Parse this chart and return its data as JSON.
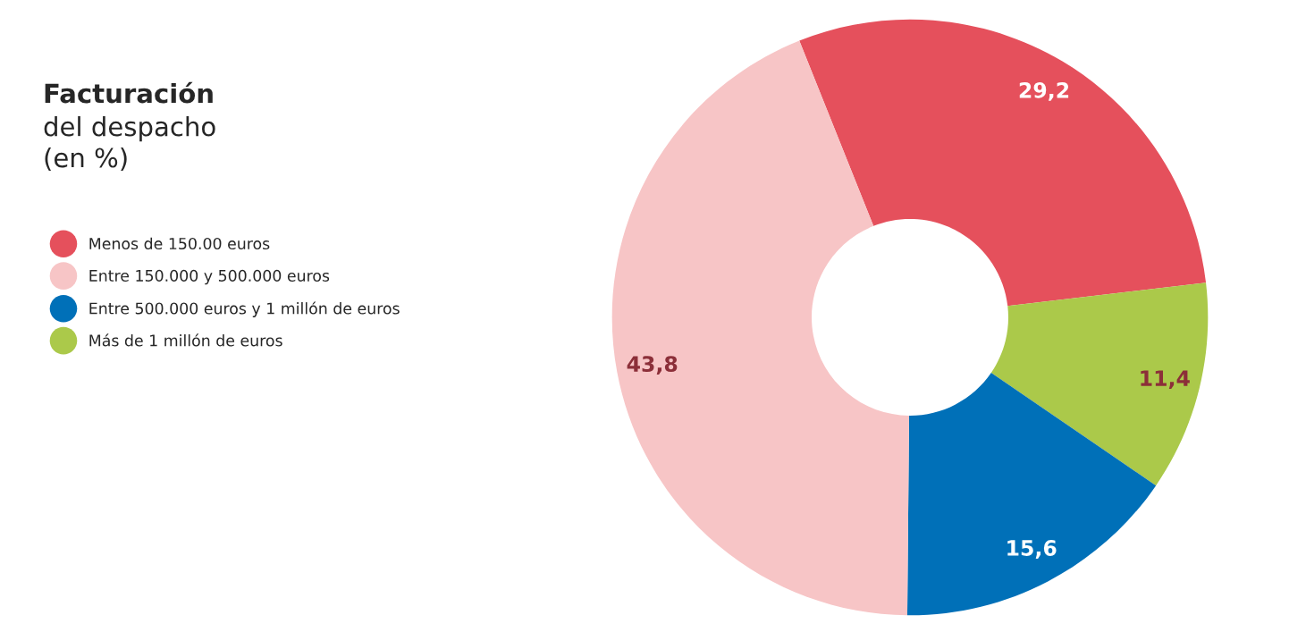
{
  "chart_data": {
    "type": "donut",
    "title": "Facturación",
    "subtitle": "del despacho\n(en %)",
    "categories": [
      "Menos de 150.00 euros",
      "Entre 150.000 y 500.000 euros",
      "Entre 500.000 euros y 1 millón de euros",
      "Más de 1 millón de euros"
    ],
    "values": [
      29.2,
      43.8,
      15.6,
      11.4
    ],
    "colors": [
      "#e5505c",
      "#f7c5c6",
      "#0070b8",
      "#abc94a"
    ],
    "value_labels": [
      "29,2",
      "43,8",
      "15,6",
      "11,4"
    ],
    "legend": "left"
  }
}
